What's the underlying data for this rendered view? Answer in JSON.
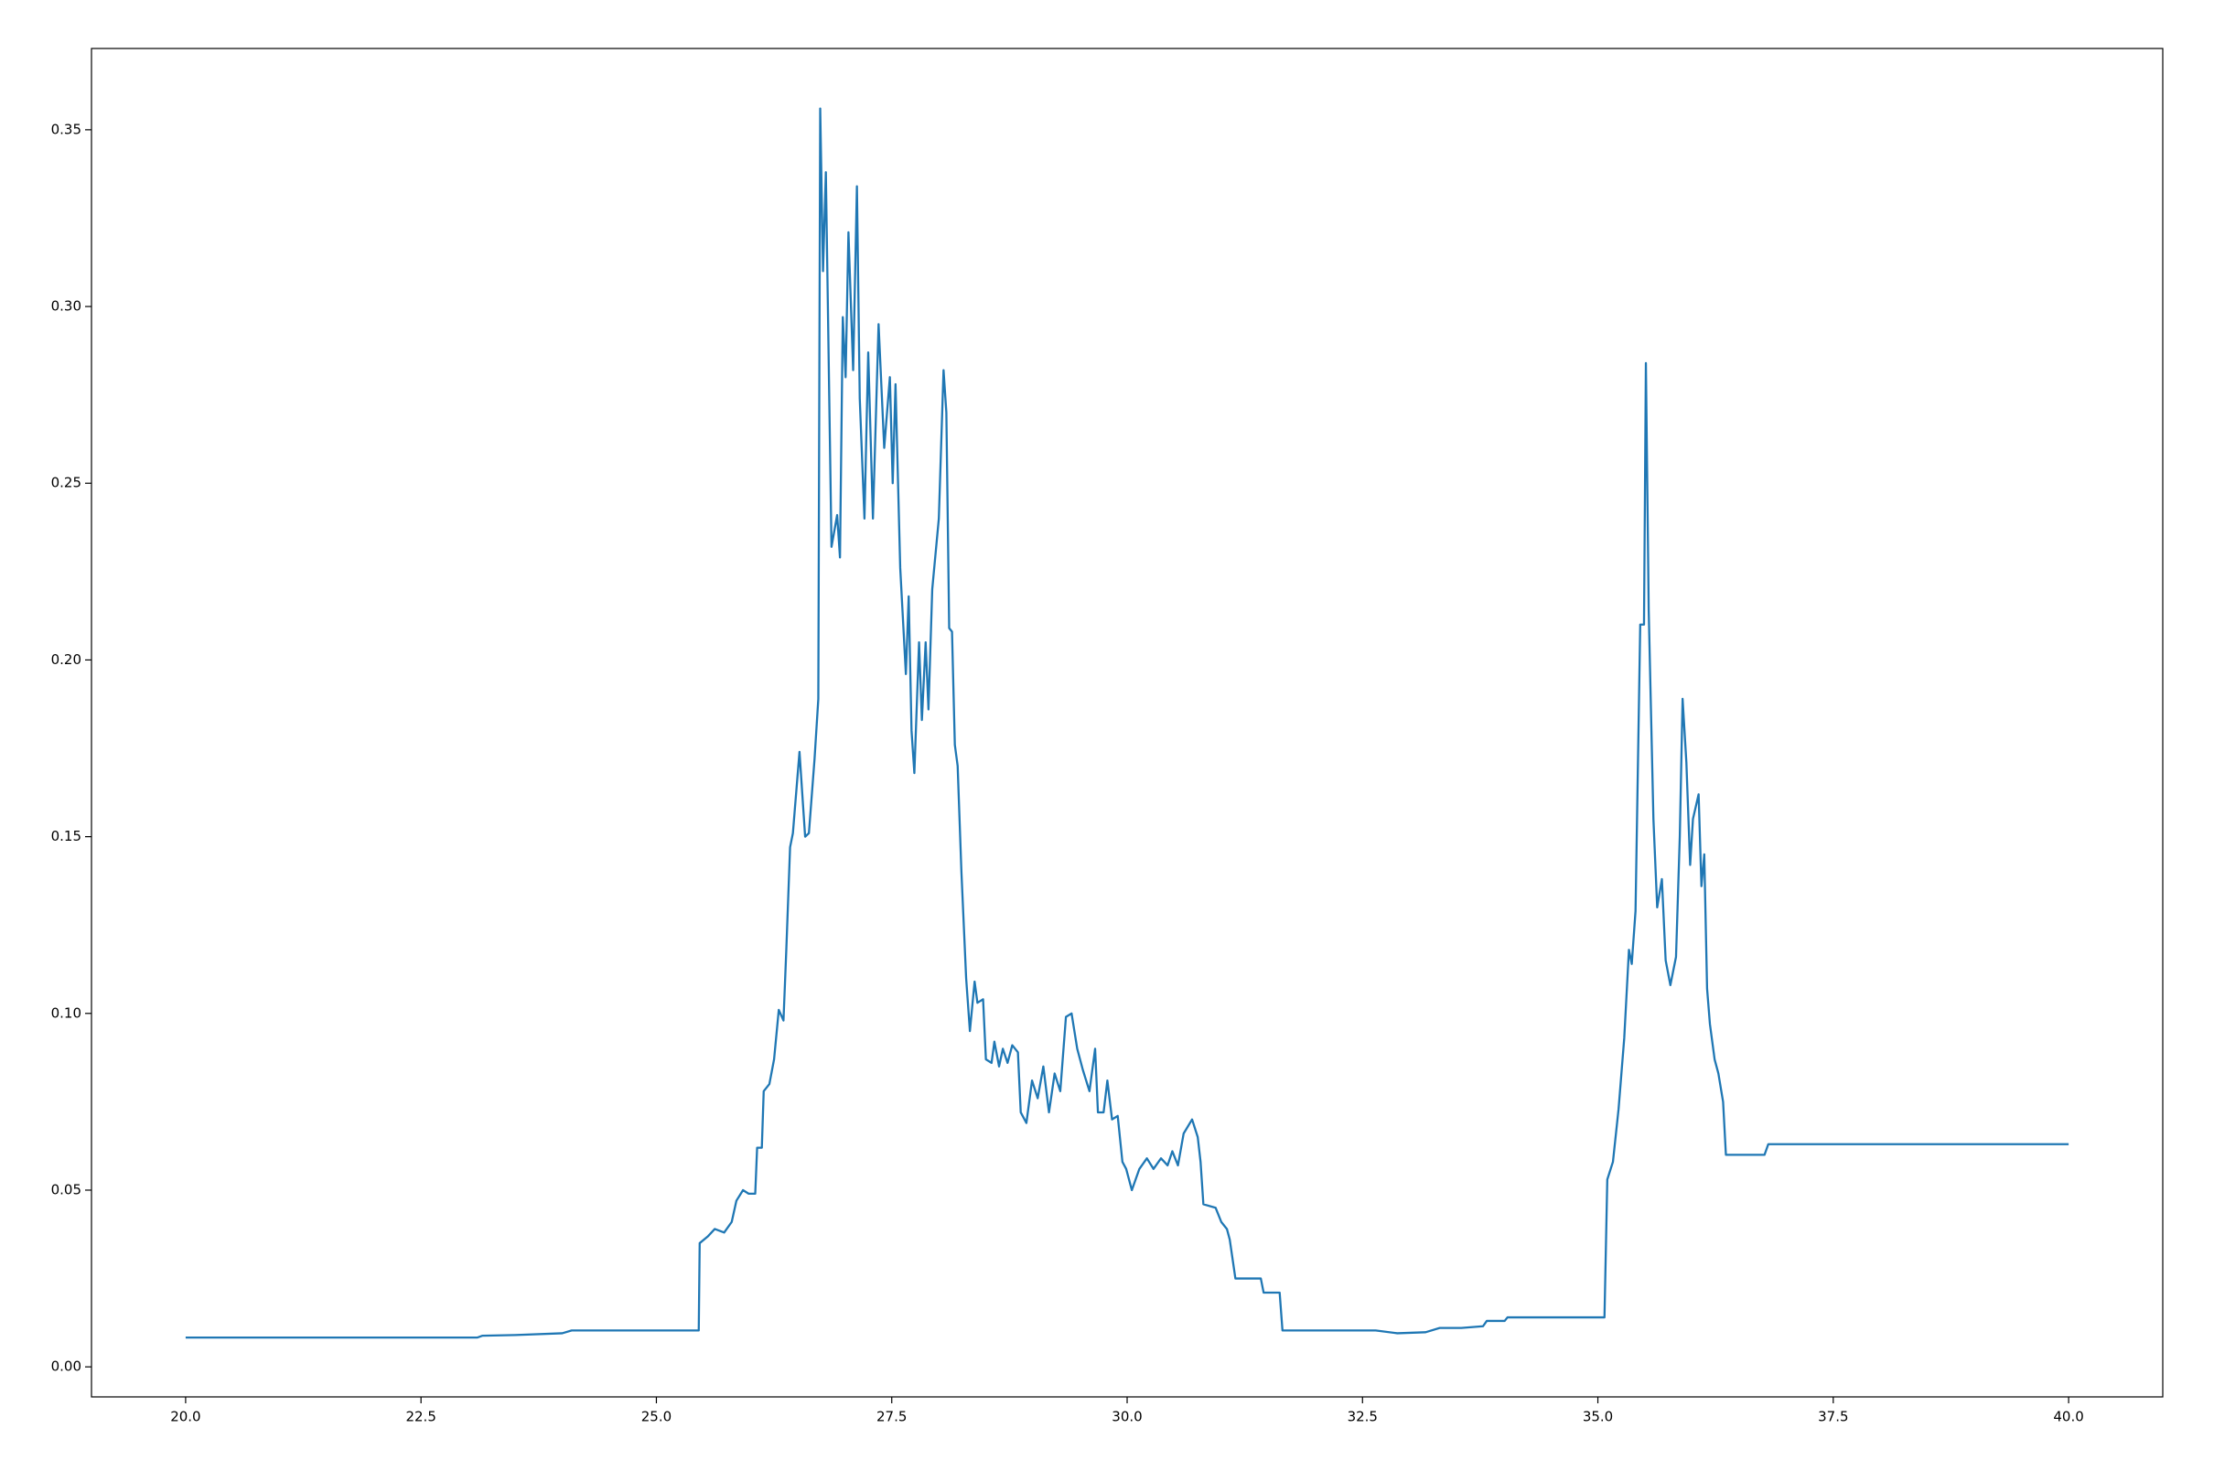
{
  "chart_data": {
    "type": "line",
    "x": [
      20.0,
      23.1,
      23.15,
      23.5,
      24.0,
      24.1,
      25.45,
      25.46,
      25.55,
      25.62,
      25.72,
      25.8,
      25.85,
      25.92,
      25.98,
      26.05,
      26.07,
      26.12,
      26.14,
      26.2,
      26.25,
      26.3,
      26.35,
      26.38,
      26.42,
      26.45,
      26.52,
      26.58,
      26.62,
      26.68,
      26.72,
      26.74,
      26.77,
      26.8,
      26.86,
      26.92,
      26.95,
      26.98,
      27.01,
      27.04,
      27.09,
      27.13,
      27.16,
      27.21,
      27.25,
      27.3,
      27.36,
      27.42,
      27.48,
      27.51,
      27.54,
      27.59,
      27.65,
      27.68,
      27.71,
      27.74,
      27.79,
      27.82,
      27.86,
      27.89,
      27.93,
      28.0,
      28.05,
      28.08,
      28.11,
      28.14,
      28.17,
      28.2,
      28.24,
      28.29,
      28.33,
      28.38,
      28.41,
      28.47,
      28.5,
      28.56,
      28.59,
      28.64,
      28.68,
      28.73,
      28.78,
      28.84,
      28.87,
      28.93,
      28.99,
      29.05,
      29.11,
      29.17,
      29.23,
      29.29,
      29.35,
      29.41,
      29.47,
      29.53,
      29.6,
      29.66,
      29.69,
      29.75,
      29.79,
      29.84,
      29.9,
      29.95,
      29.99,
      30.05,
      30.13,
      30.21,
      30.28,
      30.36,
      30.43,
      30.48,
      30.54,
      30.6,
      30.69,
      30.75,
      30.78,
      30.81,
      30.94,
      31.0,
      31.06,
      31.09,
      31.15,
      31.42,
      31.45,
      31.62,
      31.65,
      32.64,
      32.87,
      33.17,
      33.32,
      33.55,
      33.78,
      33.82,
      34.01,
      34.04,
      35.07,
      35.1,
      35.16,
      35.22,
      35.28,
      35.33,
      35.36,
      35.4,
      35.45,
      35.49,
      35.51,
      35.54,
      35.59,
      35.63,
      35.68,
      35.72,
      35.77,
      35.83,
      35.87,
      35.9,
      35.94,
      35.98,
      36.01,
      36.07,
      36.1,
      36.13,
      36.16,
      36.19,
      36.24,
      36.28,
      36.33,
      36.36,
      36.77,
      36.81,
      40.0
    ],
    "series": [
      {
        "color": "#1f77b4",
        "values": [
          0.0083,
          0.0083,
          0.0088,
          0.009,
          0.0095,
          0.0103,
          0.0103,
          0.035,
          0.037,
          0.039,
          0.038,
          0.041,
          0.047,
          0.05,
          0.049,
          0.049,
          0.062,
          0.062,
          0.078,
          0.08,
          0.087,
          0.101,
          0.098,
          0.118,
          0.147,
          0.151,
          0.174,
          0.15,
          0.151,
          0.172,
          0.189,
          0.356,
          0.31,
          0.338,
          0.232,
          0.241,
          0.229,
          0.297,
          0.28,
          0.321,
          0.282,
          0.334,
          0.274,
          0.24,
          0.287,
          0.24,
          0.295,
          0.26,
          0.28,
          0.25,
          0.278,
          0.226,
          0.196,
          0.218,
          0.18,
          0.168,
          0.205,
          0.183,
          0.205,
          0.186,
          0.22,
          0.24,
          0.282,
          0.27,
          0.209,
          0.208,
          0.176,
          0.17,
          0.14,
          0.11,
          0.095,
          0.109,
          0.103,
          0.104,
          0.087,
          0.086,
          0.092,
          0.085,
          0.09,
          0.086,
          0.091,
          0.089,
          0.072,
          0.069,
          0.081,
          0.076,
          0.085,
          0.072,
          0.083,
          0.078,
          0.099,
          0.1,
          0.09,
          0.084,
          0.078,
          0.09,
          0.072,
          0.072,
          0.081,
          0.07,
          0.071,
          0.058,
          0.056,
          0.05,
          0.056,
          0.059,
          0.056,
          0.059,
          0.057,
          0.061,
          0.057,
          0.066,
          0.07,
          0.065,
          0.058,
          0.046,
          0.045,
          0.041,
          0.039,
          0.036,
          0.025,
          0.025,
          0.021,
          0.021,
          0.0103,
          0.0103,
          0.0095,
          0.0098,
          0.011,
          0.011,
          0.0115,
          0.013,
          0.013,
          0.014,
          0.014,
          0.053,
          0.058,
          0.073,
          0.093,
          0.118,
          0.114,
          0.129,
          0.21,
          0.21,
          0.284,
          0.214,
          0.155,
          0.13,
          0.138,
          0.115,
          0.108,
          0.116,
          0.15,
          0.189,
          0.171,
          0.142,
          0.155,
          0.162,
          0.136,
          0.145,
          0.107,
          0.097,
          0.087,
          0.083,
          0.075,
          0.06,
          0.06,
          0.063,
          0.063
        ]
      }
    ],
    "xlim": [
      19,
      41
    ],
    "ylim": [
      -0.0085,
      0.373
    ],
    "xticks": [
      {
        "value": 20,
        "label": "20.0"
      },
      22.5,
      {
        "value": 25,
        "label": "25.0"
      },
      27.5,
      {
        "value": 30,
        "label": "30.0"
      },
      32.5,
      {
        "value": 35,
        "label": "35.0"
      },
      37.5,
      {
        "value": 40,
        "label": "40.0"
      }
    ],
    "yticks": [
      {
        "value": 0,
        "label": "0.00"
      },
      0.05,
      {
        "value": 0.1,
        "label": "0.10"
      },
      0.15,
      {
        "value": 0.2,
        "label": "0.20"
      },
      0.25,
      {
        "value": 0.3,
        "label": "0.30"
      },
      0.35
    ]
  }
}
